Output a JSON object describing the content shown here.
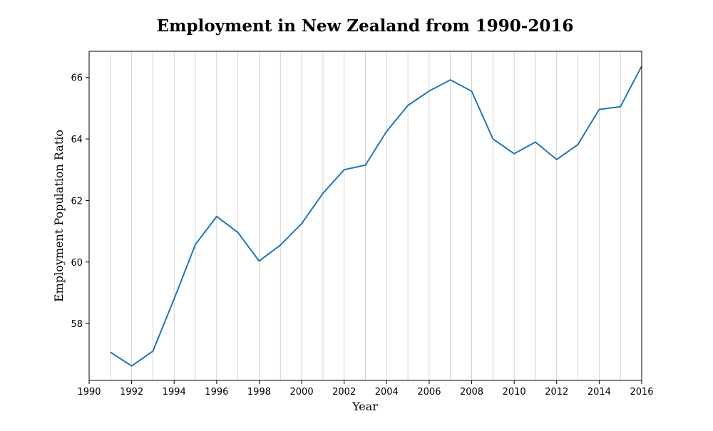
{
  "chart_data": {
    "type": "line",
    "title": "Employment in New Zealand from 1990-2016",
    "xlabel": "Year",
    "ylabel": "Employment Population Ratio",
    "xlim": [
      1990,
      2016
    ],
    "ylim": [
      56.15,
      66.85
    ],
    "x_ticks": [
      1990,
      1992,
      1994,
      1996,
      1998,
      2000,
      2002,
      2004,
      2006,
      2008,
      2010,
      2012,
      2014,
      2016
    ],
    "y_ticks": [
      58,
      60,
      62,
      64,
      66
    ],
    "grid": "vertical lines at every year",
    "series": [
      {
        "color": "#1f77b4",
        "x": [
          1991,
          1992,
          1993,
          1994,
          1995,
          1996,
          1997,
          1998,
          1999,
          2000,
          2001,
          2002,
          2003,
          2004,
          2005,
          2006,
          2007,
          2008,
          2009,
          2010,
          2011,
          2012,
          2013,
          2014,
          2015,
          2016
        ],
        "y": [
          57.07,
          56.62,
          57.1,
          58.8,
          60.57,
          61.48,
          60.96,
          60.03,
          60.55,
          61.25,
          62.23,
          63.0,
          63.15,
          64.25,
          65.09,
          65.56,
          65.92,
          65.55,
          64.0,
          63.52,
          63.9,
          63.33,
          63.82,
          64.96,
          65.05,
          66.37
        ]
      }
    ]
  }
}
